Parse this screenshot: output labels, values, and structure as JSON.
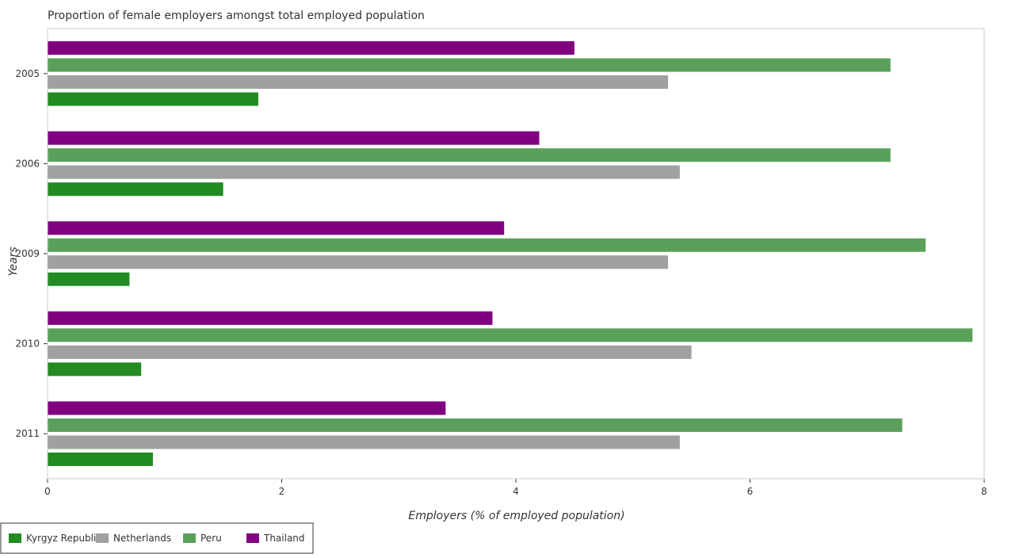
{
  "chart_data": {
    "type": "bar",
    "orientation": "horizontal",
    "title": "Proportion of female employers amongst total employed population",
    "xlabel": "Employers (% of employed population)",
    "ylabel": "Years",
    "categories": [
      "2005",
      "2006",
      "2009",
      "2010",
      "2011"
    ],
    "xlim": [
      0,
      8
    ],
    "xticks": [
      0,
      2,
      4,
      6,
      8
    ],
    "grid": false,
    "legend_position": "bottom-left",
    "series": [
      {
        "name": "Kyrgyz Republic",
        "color": "#228b22",
        "values": [
          1.8,
          1.5,
          0.7,
          0.8,
          0.9
        ]
      },
      {
        "name": "Netherlands",
        "color": "#a0a0a0",
        "values": [
          5.3,
          5.4,
          5.3,
          5.5,
          5.4
        ]
      },
      {
        "name": "Peru",
        "color": "#5aa05a",
        "values": [
          7.2,
          7.2,
          7.5,
          7.9,
          7.3
        ]
      },
      {
        "name": "Thailand",
        "color": "#800080",
        "values": [
          4.5,
          4.2,
          3.9,
          3.8,
          3.4
        ]
      }
    ]
  }
}
